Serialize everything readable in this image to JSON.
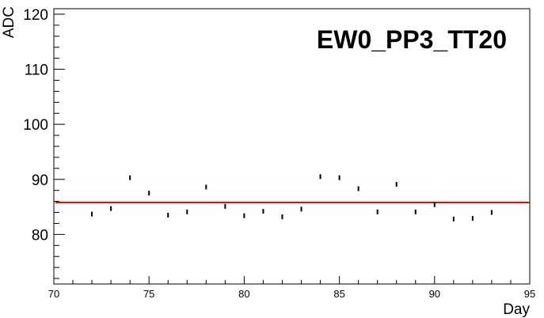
{
  "chart_data": {
    "type": "scatter",
    "title": "EW0_PP3_TT20",
    "xlabel": "Day",
    "ylabel": "ADC",
    "xlim": [
      70,
      95
    ],
    "ylim": [
      71,
      121
    ],
    "x_ticks_major": [
      70,
      75,
      80,
      85,
      90,
      95
    ],
    "y_ticks_major": [
      80,
      90,
      100,
      110,
      120
    ],
    "grid": false,
    "legend": "none",
    "colors": {
      "points": "#000000",
      "fit_line": "#ff0000",
      "frame": "#000000"
    },
    "series": [
      {
        "x": [
          72,
          73,
          74,
          75,
          76,
          77,
          78,
          79,
          80,
          81,
          82,
          83,
          84,
          85,
          86,
          87,
          88,
          89,
          90,
          91,
          92,
          93
        ],
        "y": [
          83.7,
          84.7,
          90.3,
          87.5,
          83.5,
          84.1,
          88.6,
          85.1,
          83.4,
          84.2,
          83.2,
          84.6,
          90.5,
          90.3,
          88.3,
          84.1,
          89.1,
          84.1,
          85.4,
          82.8,
          82.9,
          84.0
        ]
      }
    ],
    "fit_line": {
      "y": 85.8
    }
  }
}
